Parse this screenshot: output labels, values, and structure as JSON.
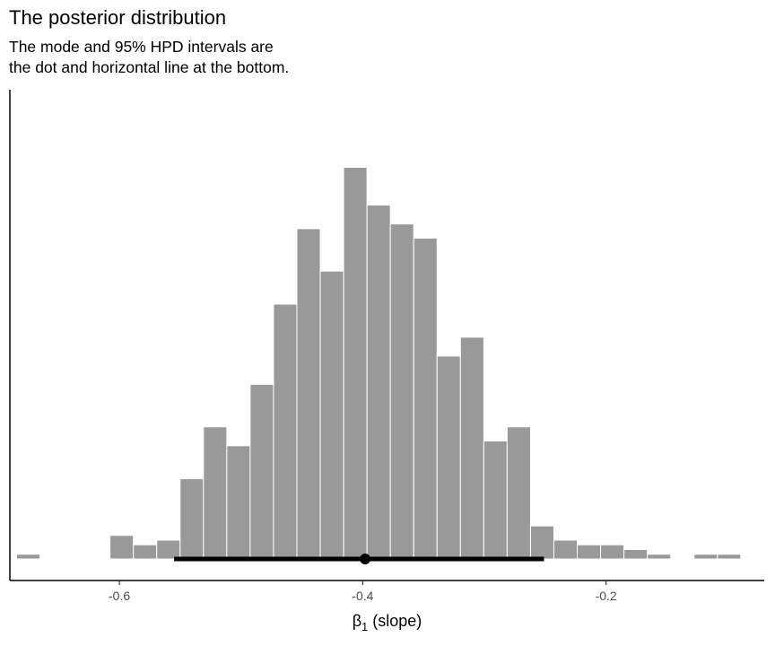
{
  "title": "The posterior distribution",
  "subtitle_lines": [
    "The mode and 95% HPD intervals are",
    "the dot and horizontal line at the bottom."
  ],
  "chart_data": {
    "type": "bar",
    "kind": "histogram",
    "xlabel_symbol": "β",
    "xlabel_subscript": "1",
    "xlabel_rest": " (slope)",
    "ylabel": "",
    "xlim": [
      -0.69,
      -0.07
    ],
    "bin_width": 0.0192,
    "bin_start": -0.6845,
    "counts": [
      1,
      0,
      0,
      0,
      5,
      3,
      4,
      17,
      28,
      24,
      37,
      54,
      70,
      61,
      83,
      75,
      71,
      68,
      43,
      47,
      25,
      28,
      7,
      4,
      3,
      3,
      2,
      1,
      0,
      1,
      1
    ],
    "y_count_max": 85,
    "x_ticks": [
      -0.6,
      -0.4,
      -0.2
    ],
    "x_tick_labels": [
      "-0.6",
      "-0.4",
      "-0.2"
    ],
    "mode": -0.398,
    "hpd_95": [
      -0.555,
      -0.251
    ],
    "colors": {
      "bar_fill": "#999999",
      "bar_stroke": "#ffffff",
      "interval": "#000000",
      "axis": "#000000"
    }
  }
}
